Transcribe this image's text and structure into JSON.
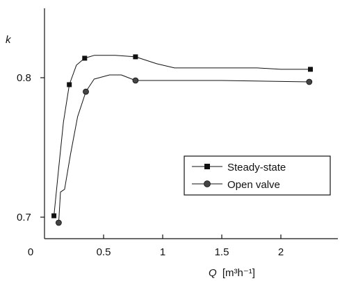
{
  "chart_data": {
    "type": "line",
    "xlabel": {
      "symbol": "Q",
      "unit": "[m³h⁻¹]"
    },
    "ylabel": "k",
    "xlim": [
      0,
      2.5
    ],
    "ylim": [
      0.69,
      0.85
    ],
    "x_ticks": [
      "0",
      "0.5",
      "1",
      "1.5",
      "2"
    ],
    "y_ticks": [
      "0.7",
      "0.8"
    ],
    "grid": false,
    "legend_position": "center-right",
    "series": [
      {
        "name": "Steady-state",
        "marker": "square",
        "points": [
          {
            "x": 0.08,
            "y": 0.701
          },
          {
            "x": 0.21,
            "y": 0.795
          },
          {
            "x": 0.34,
            "y": 0.814
          },
          {
            "x": 0.77,
            "y": 0.815
          },
          {
            "x": 2.25,
            "y": 0.806
          }
        ],
        "curve": [
          [
            0.08,
            0.701
          ],
          [
            0.12,
            0.735
          ],
          [
            0.16,
            0.768
          ],
          [
            0.21,
            0.795
          ],
          [
            0.27,
            0.809
          ],
          [
            0.34,
            0.814
          ],
          [
            0.42,
            0.816
          ],
          [
            0.6,
            0.816
          ],
          [
            0.77,
            0.815
          ],
          [
            0.95,
            0.81
          ],
          [
            1.1,
            0.807
          ],
          [
            1.5,
            0.807
          ],
          [
            1.8,
            0.807
          ],
          [
            2.0,
            0.806
          ],
          [
            2.25,
            0.806
          ]
        ]
      },
      {
        "name": "Open valve",
        "marker": "circle",
        "points": [
          {
            "x": 0.12,
            "y": 0.696
          },
          {
            "x": 0.35,
            "y": 0.79
          },
          {
            "x": 0.77,
            "y": 0.798
          },
          {
            "x": 2.24,
            "y": 0.797
          }
        ],
        "curve": [
          [
            0.12,
            0.696
          ],
          [
            0.135,
            0.718
          ],
          [
            0.17,
            0.72
          ],
          [
            0.22,
            0.745
          ],
          [
            0.28,
            0.772
          ],
          [
            0.35,
            0.79
          ],
          [
            0.42,
            0.799
          ],
          [
            0.55,
            0.802
          ],
          [
            0.65,
            0.802
          ],
          [
            0.77,
            0.798
          ],
          [
            1.5,
            0.798
          ],
          [
            2.24,
            0.797
          ]
        ]
      }
    ]
  }
}
